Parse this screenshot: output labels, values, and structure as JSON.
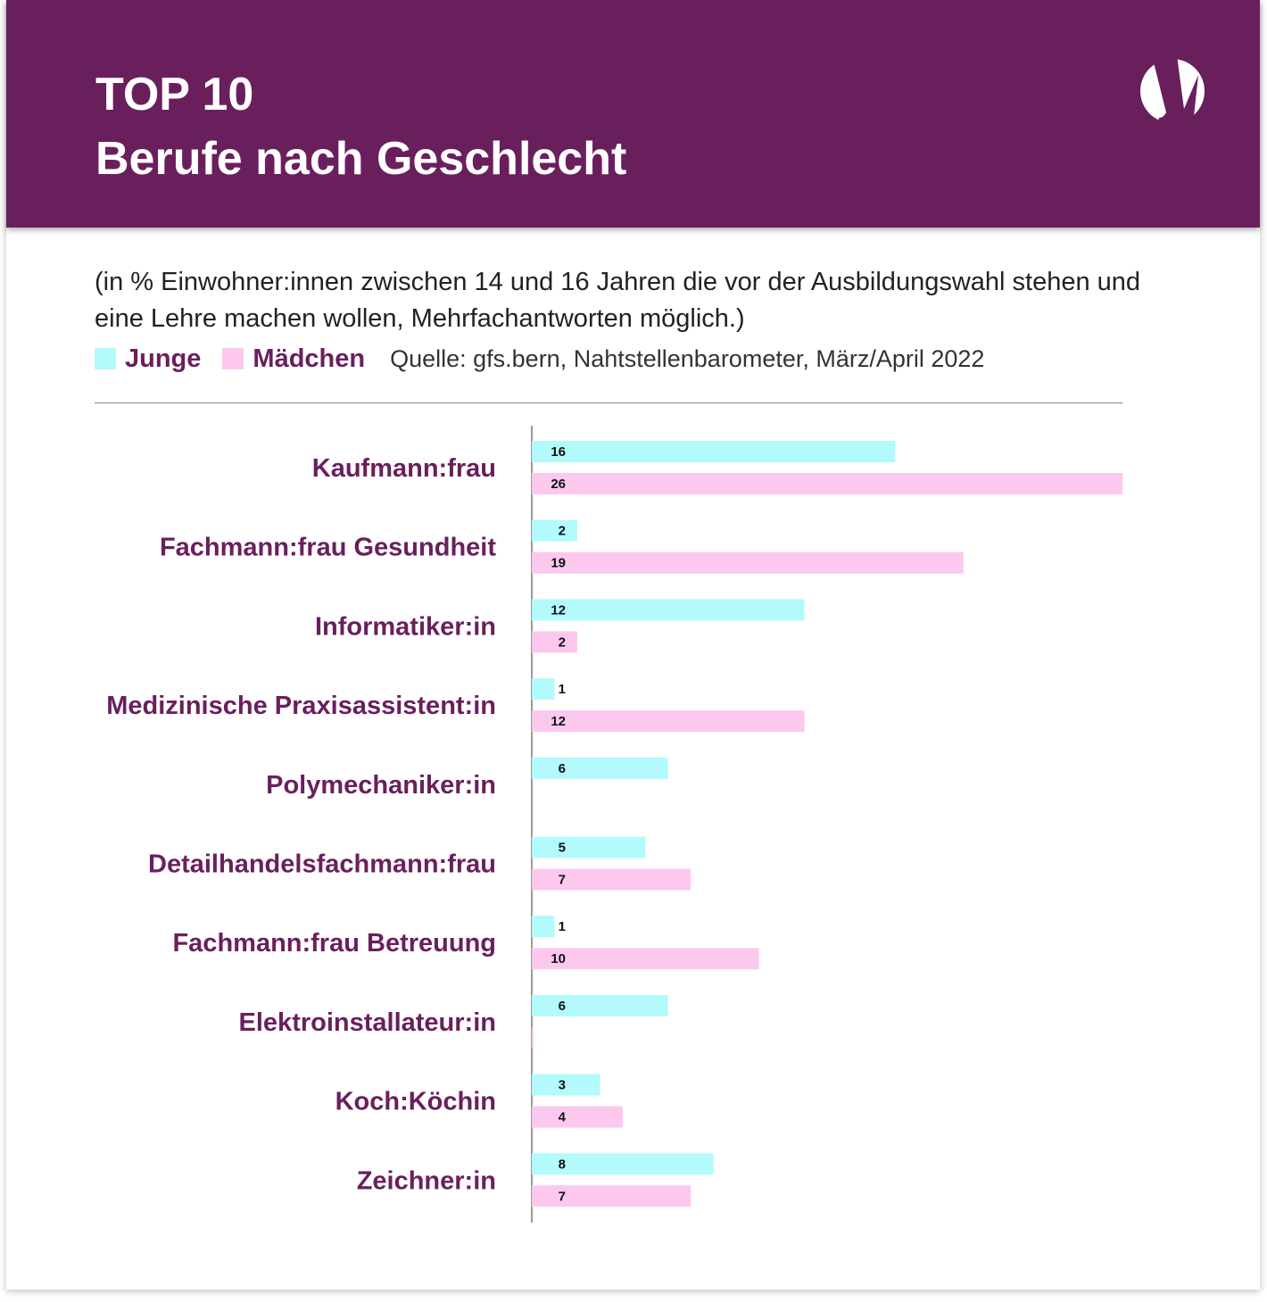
{
  "header": {
    "title_line1": "TOP 10",
    "title_line2": "Berufe nach Geschlecht",
    "logo": "y-circle-logo"
  },
  "subtitle": "(in % Einwohner:innen zwischen 14 und 16 Jahren die vor der Ausbildungswahl stehen und eine Lehre machen wollen, Mehrfachantworten möglich.)",
  "legend": {
    "junge": "Junge",
    "maedchen": "Mädchen",
    "source": "Quelle: gfs.bern, Nahtstellenbarometer, März/April 2022"
  },
  "colors": {
    "brand": "#6a1f5d",
    "junge": "#b3fafc",
    "maedchen": "#fdc8ee"
  },
  "chart_data": {
    "type": "bar",
    "orientation": "horizontal",
    "categories": [
      "Kaufmann:frau",
      "Fachmann:frau Gesundheit",
      "Informatiker:in",
      "Medizinische Praxisassistent:in",
      "Polymechaniker:in",
      "Detailhandelsfachmann:frau",
      "Fachmann:frau Betreuung",
      "Elektroinstallateur:in",
      "Koch:Köchin",
      "Zeichner:in"
    ],
    "series": [
      {
        "name": "Junge",
        "values": [
          16,
          2,
          12,
          1,
          6,
          5,
          1,
          6,
          3,
          8
        ]
      },
      {
        "name": "Mädchen",
        "values": [
          26,
          19,
          2,
          12,
          null,
          7,
          10,
          0,
          4,
          7
        ]
      }
    ],
    "unit": "%",
    "xlim": [
      0,
      26
    ],
    "grid": false,
    "data_labels": true,
    "legend_position": "top-left"
  }
}
